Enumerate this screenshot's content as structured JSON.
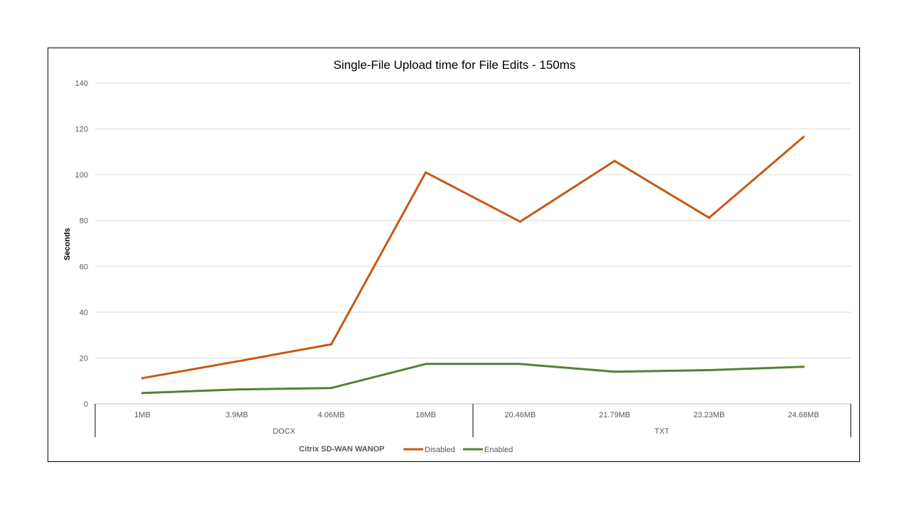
{
  "chart_data": {
    "type": "line",
    "title": "Single-File Upload time for File Edits - 150ms",
    "ylabel": "Seconds",
    "xlabel": "",
    "ylim": [
      0,
      140
    ],
    "yticks": [
      0,
      20,
      40,
      60,
      80,
      100,
      120,
      140
    ],
    "grid": true,
    "categories": [
      "1MB",
      "3.9MB",
      "4.06MB",
      "18MB",
      "20.46MB",
      "21.79MB",
      "23.23MB",
      "24.68MB"
    ],
    "groups": [
      {
        "label": "DOCX",
        "count": 4
      },
      {
        "label": "TXT",
        "count": 4
      }
    ],
    "legend": {
      "title": "Citrix SD-WAN WANOP",
      "placement": "bottom"
    },
    "series": [
      {
        "name": "Disabled",
        "color": "#C55A11",
        "values": [
          11.2,
          18.5,
          26,
          101,
          79.5,
          106,
          81.2,
          116.5
        ]
      },
      {
        "name": "Enabled",
        "color": "#538135",
        "values": [
          4.7,
          6.3,
          6.9,
          17.4,
          17.4,
          14,
          14.7,
          16.2
        ]
      }
    ]
  }
}
